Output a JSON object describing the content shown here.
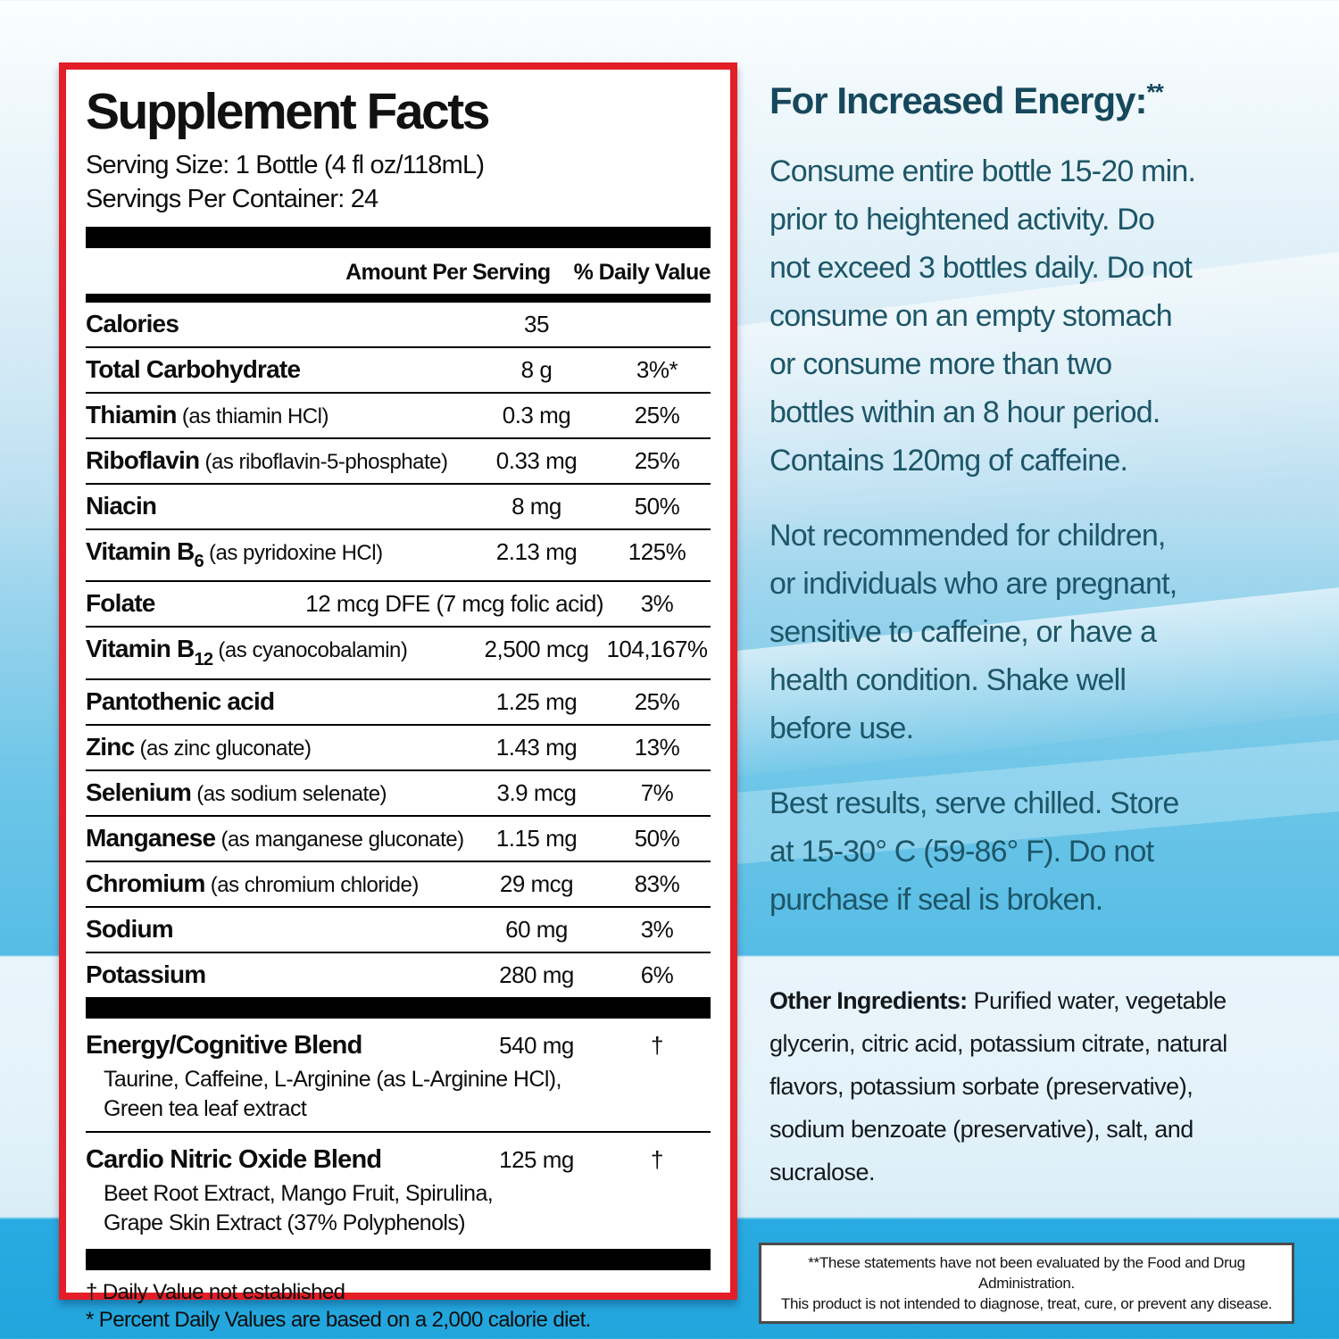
{
  "colors": {
    "label_border_red": "#e31e26",
    "deep_blue_bg": "#29abe2",
    "mid_blue_bg": "#5fc0e6",
    "usage_text_teal": "#1d5668",
    "heading_teal": "#16485c",
    "bar_black": "#000000"
  },
  "label": {
    "title": "Supplement Facts",
    "serving_size": "Serving Size: 1 Bottle (4 fl oz/118mL)",
    "servings_per_container": "Servings Per Container: 24",
    "col_amount": "Amount Per Serving",
    "col_dv": "% Daily Value",
    "rows": [
      {
        "name": "Calories",
        "detail": "",
        "amount": "35",
        "dv": ""
      },
      {
        "name": "Total Carbohydrate",
        "detail": "",
        "amount": "8 g",
        "dv": "3%*"
      },
      {
        "name": "Thiamin",
        "detail": "(as thiamin HCl)",
        "amount": "0.3 mg",
        "dv": "25%"
      },
      {
        "name": "Riboflavin",
        "detail": "(as riboflavin-5-phosphate)",
        "amount": "0.33 mg",
        "dv": "25%"
      },
      {
        "name": "Niacin",
        "detail": "",
        "amount": "8 mg",
        "dv": "50%"
      },
      {
        "name": "Vitamin B",
        "sub": "6",
        "detail": "(as pyridoxine HCl)",
        "amount": "2.13 mg",
        "dv": "125%"
      },
      {
        "name": "Folate",
        "detail": "",
        "amount": "12 mcg DFE (7 mcg folic acid)",
        "dv": "3%"
      },
      {
        "name": "Vitamin B",
        "sub": "12",
        "detail": "(as cyanocobalamin)",
        "amount": "2,500 mcg",
        "dv": "104,167%"
      },
      {
        "name": "Pantothenic acid",
        "detail": "",
        "amount": "1.25 mg",
        "dv": "25%"
      },
      {
        "name": "Zinc",
        "detail": "(as zinc gluconate)",
        "amount": "1.43 mg",
        "dv": "13%"
      },
      {
        "name": "Selenium",
        "detail": "(as sodium selenate)",
        "amount": "3.9 mcg",
        "dv": "7%"
      },
      {
        "name": "Manganese",
        "detail": "(as manganese gluconate)",
        "amount": "1.15 mg",
        "dv": "50%"
      },
      {
        "name": "Chromium",
        "detail": "(as chromium chloride)",
        "amount": "29 mcg",
        "dv": "83%"
      },
      {
        "name": "Sodium",
        "detail": "",
        "amount": "60 mg",
        "dv": "3%"
      },
      {
        "name": "Potassium",
        "detail": "",
        "amount": "280 mg",
        "dv": "6%"
      }
    ],
    "blends": [
      {
        "name": "Energy/Cognitive Blend",
        "amount": "540 mg",
        "dv": "†",
        "ingredients": "Taurine, Caffeine, L-Arginine (as L-Arginine HCl),\nGreen tea leaf extract"
      },
      {
        "name": "Cardio Nitric Oxide Blend",
        "amount": "125 mg",
        "dv": "†",
        "ingredients": "Beet Root Extract, Mango Fruit, Spirulina,\nGrape Skin Extract (37% Polyphenols)"
      }
    ],
    "footnotes": [
      "† Daily Value not established",
      "* Percent Daily Values are based on a 2,000 calorie diet."
    ]
  },
  "usage": {
    "heading": "For Increased Energy:",
    "heading_sup": "**",
    "paragraphs": [
      "Consume entire bottle 15-20 min.\nprior to heightened activity. Do\nnot exceed 3 bottles daily. Do not\nconsume on an empty stomach\nor consume more than two\nbottles within an 8 hour period.\nContains 120mg of caffeine.",
      "Not recommended for children,\nor individuals who are pregnant,\nsensitive to caffeine, or have a\nhealth condition. Shake well\nbefore use.",
      "Best results, serve chilled. Store\nat 15-30° C (59-86° F). Do not\npurchase if seal is broken."
    ],
    "other_ingredients_label": "Other Ingredients:",
    "other_ingredients_text": " Purified water, vegetable\nglycerin, citric acid, potassium citrate, natural\nflavors, potassium sorbate (preservative),\nsodium benzoate (preservative), salt, and\nsucralose.",
    "disclaimer": "**These statements have not been evaluated by the Food and Drug Administration.\nThis product is not intended to diagnose, treat, cure, or prevent any disease."
  }
}
